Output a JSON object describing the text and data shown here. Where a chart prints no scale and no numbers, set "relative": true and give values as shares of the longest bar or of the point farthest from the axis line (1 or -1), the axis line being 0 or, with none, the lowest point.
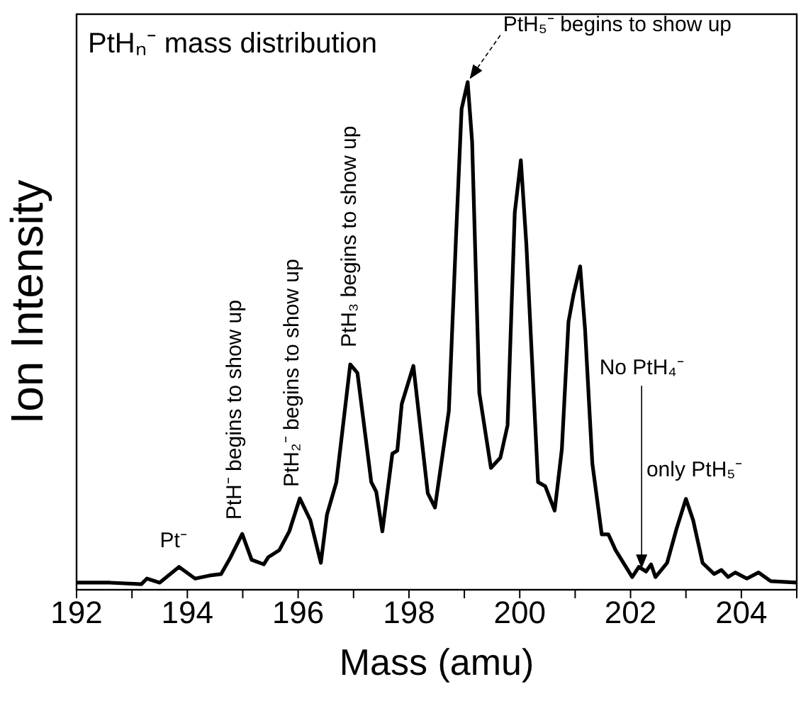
{
  "chart_data": {
    "type": "line",
    "title": "PtHₙ⁻ mass distribution",
    "xlabel": "Mass (amu)",
    "ylabel": "Ion Intensity",
    "relative": true,
    "color": "#000000",
    "marker": "none",
    "line_style": "solid",
    "xlim": [
      192,
      205
    ],
    "xticks": [
      192,
      {
        "value": 193,
        "label": null
      },
      194,
      {
        "value": 195,
        "label": null
      },
      196,
      {
        "value": 197,
        "label": null
      },
      198,
      {
        "value": 199,
        "label": null
      },
      200,
      {
        "value": 201,
        "label": null
      },
      202,
      {
        "value": 203,
        "label": null
      },
      204,
      {
        "value": 205,
        "label": null
      }
    ],
    "x": [
      192,
      192.6,
      193.17,
      193.27,
      193.5,
      193.85,
      194.14,
      194.4,
      194.61,
      194.78,
      194.99,
      195.16,
      195.38,
      195.46,
      195.66,
      195.84,
      196.03,
      196.22,
      196.41,
      196.52,
      196.69,
      196.94,
      197.07,
      197.32,
      197.41,
      197.52,
      197.7,
      197.79,
      197.87,
      198.08,
      198.34,
      198.47,
      198.72,
      198.85,
      198.95,
      199.06,
      199.14,
      199.27,
      199.48,
      199.65,
      199.78,
      199.91,
      200.02,
      200.12,
      200.33,
      200.46,
      200.63,
      200.76,
      200.88,
      200.97,
      201.09,
      201.18,
      201.31,
      201.48,
      201.6,
      201.73,
      202.03,
      202.15,
      202.28,
      202.37,
      202.45,
      202.66,
      202.83,
      203,
      203.13,
      203.3,
      203.51,
      203.64,
      203.76,
      203.89,
      204.1,
      204.31,
      204.53,
      205
    ],
    "values": [
      0.014,
      0.014,
      0.011,
      0.022,
      0.014,
      0.045,
      0.022,
      0.028,
      0.031,
      0.064,
      0.11,
      0.059,
      0.05,
      0.064,
      0.078,
      0.115,
      0.18,
      0.137,
      0.053,
      0.148,
      0.212,
      0.444,
      0.427,
      0.212,
      0.193,
      0.115,
      0.268,
      0.274,
      0.366,
      0.441,
      0.19,
      0.162,
      0.352,
      0.696,
      0.947,
      1,
      0.883,
      0.388,
      0.24,
      0.26,
      0.324,
      0.743,
      0.846,
      0.679,
      0.212,
      0.204,
      0.156,
      0.277,
      0.528,
      0.581,
      0.637,
      0.511,
      0.249,
      0.109,
      0.109,
      0.078,
      0.025,
      0.045,
      0.036,
      0.05,
      0.025,
      0.053,
      0.12,
      0.179,
      0.137,
      0.053,
      0.031,
      0.039,
      0.025,
      0.034,
      0.022,
      0.034,
      0.017,
      0.014
    ],
    "annotations": [
      {
        "text": "Pt⁻",
        "x": 193.85,
        "y": 0.045
      },
      {
        "text": "PtH⁻ begins to show up",
        "x": 194.99,
        "y": 0.11
      },
      {
        "text": "PtH₂⁻ begins to show up",
        "x": 196.03,
        "y": 0.18
      },
      {
        "text": "PtH₃ begins to show up",
        "x": 196.94,
        "y": 0.444
      },
      {
        "text": "PtH₅⁻ begins to show up",
        "x": 199.06,
        "y": 1
      },
      {
        "text": "No PtH₄⁻",
        "x": 202.2,
        "y": 0.036
      },
      {
        "text": "only PtH₅⁻",
        "x": 203,
        "y": 0.179
      }
    ]
  }
}
